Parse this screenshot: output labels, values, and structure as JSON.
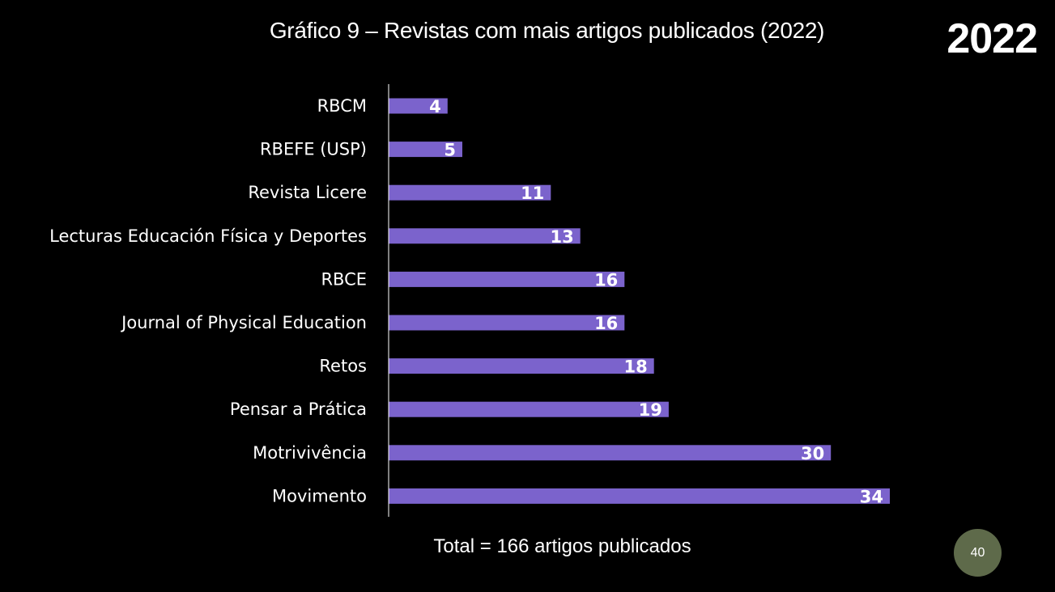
{
  "slide": {
    "title": "Gráfico 9 – Revistas com mais artigos publicados (2022)",
    "year_badge": "2022",
    "total_note": "Total = 166 artigos publicados",
    "page_number": "40"
  },
  "colors": {
    "background": "#000000",
    "bar": "#7b63cc",
    "text": "#ffffff",
    "axis": "#ffffff",
    "page_badge": "#5e6a4a"
  },
  "chart_data": {
    "type": "bar",
    "orientation": "horizontal",
    "title": "Gráfico 9 – Revistas com mais artigos publicados (2022)",
    "categories": [
      "RBCM",
      "RBEFE (USP)",
      "Revista Licere",
      "Lecturas Educación Física y Deportes",
      "RBCE",
      "Journal of Physical Education ",
      "Retos",
      "Pensar a Prática",
      "Motrivivência",
      "Movimento"
    ],
    "values": [
      4,
      5,
      11,
      13,
      16,
      16,
      18,
      19,
      30,
      34
    ],
    "data_labels": true,
    "xlim": [
      0,
      34
    ],
    "grid": false,
    "legend": "none"
  }
}
